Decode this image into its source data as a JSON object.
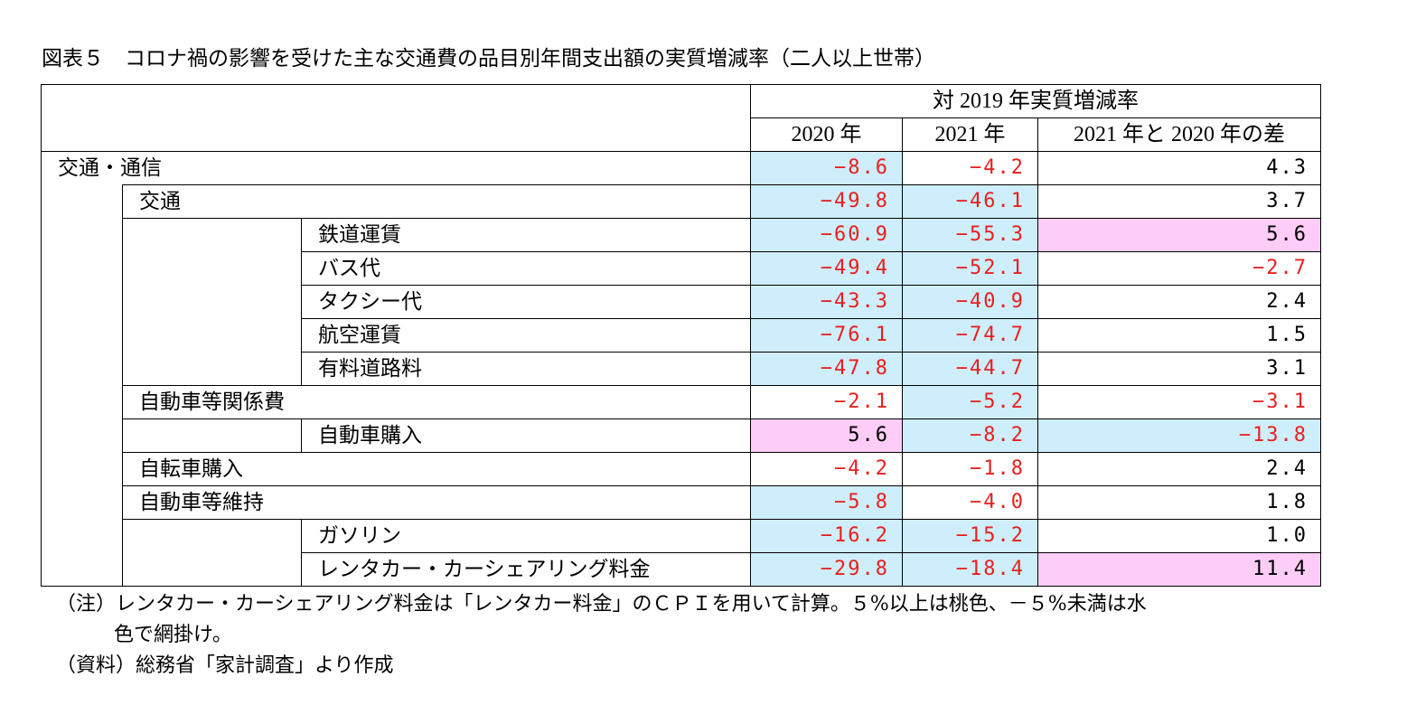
{
  "title": "図表５　コロナ禍の影響を受けた主な交通費の品目別年間支出額の実質増減率（二人以上世帯）",
  "chart_data": {
    "type": "table",
    "header_group": "対 2019 年実質増減率",
    "columns": [
      "2020 年",
      "2021 年",
      "2021 年と 2020 年の差"
    ],
    "rows": [
      {
        "label": "交通・通信",
        "level": 1,
        "values": [
          "-8.6",
          "-4.2",
          "4.3"
        ],
        "shading": [
          "blue",
          "",
          ""
        ]
      },
      {
        "label": "交通",
        "level": 2,
        "values": [
          "-49.8",
          "-46.1",
          "3.7"
        ],
        "shading": [
          "blue",
          "blue",
          ""
        ]
      },
      {
        "label": "鉄道運賃",
        "level": 3,
        "values": [
          "-60.9",
          "-55.3",
          "5.6"
        ],
        "shading": [
          "blue",
          "blue",
          "pink"
        ]
      },
      {
        "label": "バス代",
        "level": 3,
        "values": [
          "-49.4",
          "-52.1",
          "-2.7"
        ],
        "shading": [
          "blue",
          "blue",
          ""
        ]
      },
      {
        "label": "タクシー代",
        "level": 3,
        "values": [
          "-43.3",
          "-40.9",
          "2.4"
        ],
        "shading": [
          "blue",
          "blue",
          ""
        ]
      },
      {
        "label": "航空運賃",
        "level": 3,
        "values": [
          "-76.1",
          "-74.7",
          "1.5"
        ],
        "shading": [
          "blue",
          "blue",
          ""
        ]
      },
      {
        "label": "有料道路料",
        "level": 3,
        "values": [
          "-47.8",
          "-44.7",
          "3.1"
        ],
        "shading": [
          "blue",
          "blue",
          ""
        ]
      },
      {
        "label": "自動車等関係費",
        "level": 2,
        "values": [
          "-2.1",
          "-5.2",
          "-3.1"
        ],
        "shading": [
          "",
          "blue",
          ""
        ]
      },
      {
        "label": "自動車購入",
        "level": 3,
        "values": [
          "5.6",
          "-8.2",
          "-13.8"
        ],
        "shading": [
          "pink",
          "blue",
          "blue"
        ]
      },
      {
        "label": "自転車購入",
        "level": 2,
        "values": [
          "-4.2",
          "-1.8",
          "2.4"
        ],
        "shading": [
          "",
          "",
          ""
        ]
      },
      {
        "label": "自動車等維持",
        "level": 2,
        "values": [
          "-5.8",
          "-4.0",
          "1.8"
        ],
        "shading": [
          "blue",
          "",
          ""
        ]
      },
      {
        "label": "ガソリン",
        "level": 3,
        "values": [
          "-16.2",
          "-15.2",
          "1.0"
        ],
        "shading": [
          "blue",
          "blue",
          ""
        ]
      },
      {
        "label": "レンタカー・カーシェアリング料金",
        "level": 3,
        "values": [
          "-29.8",
          "-18.4",
          "11.4"
        ],
        "shading": [
          "blue",
          "blue",
          "pink"
        ]
      }
    ],
    "colors": {
      "blue": "#cfeefc",
      "pink": "#fdcdf7",
      "negative_text": "#e8201f"
    }
  },
  "notes": {
    "note1": "（注）レンタカー・カーシェアリング料金は「レンタカー料金」のＣＰＩを用いて計算。５%以上は桃色、－５%未満は水",
    "note1_cont": "色で網掛け。",
    "source": "（資料）総務省「家計調査」より作成"
  }
}
